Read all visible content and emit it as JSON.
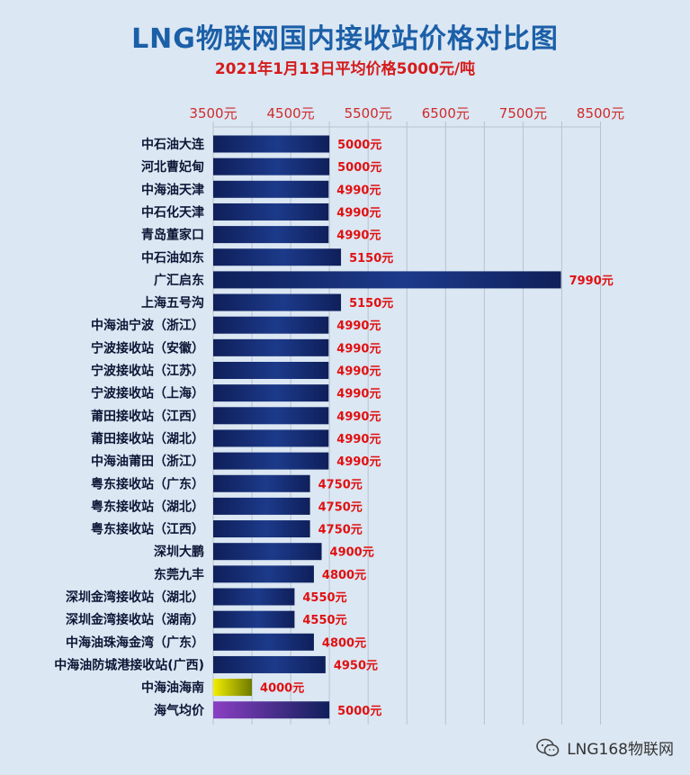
{
  "page": {
    "title": "LNG物联网国内接收站价格对比图",
    "subtitle": "2021年1月13日平均价格5000元/吨"
  },
  "watermark": {
    "text": "LNG168物联网",
    "icon": "wechat-icon"
  },
  "colors": {
    "bar_dark": "#0f1f5a",
    "bar_light": "#2548a6",
    "highlight_bar": [
      "#f2ee00",
      "#7a8a00"
    ],
    "average_bar": [
      "#8b3fc4",
      "#0f1f5a"
    ],
    "value_label": "#e01010",
    "tick_label": "#d02b2b",
    "grid": "#b9c3cf"
  },
  "chart_data": {
    "type": "bar",
    "orientation": "horizontal",
    "title": "LNG物联网国内接收站价格对比图",
    "subtitle": "2021年1月13日平均价格5000元/吨",
    "x_axis": {
      "position": "top",
      "min": 3500,
      "max": 8500,
      "ticks": [
        3500,
        4500,
        5500,
        6500,
        7500,
        8500
      ],
      "tick_labels": [
        "3500元",
        "4500元",
        "5500元",
        "6500元",
        "7500元",
        "8500元"
      ],
      "grid": true
    },
    "categories": [
      "中石油大连",
      "河北曹妃甸",
      "中海油天津",
      "中石化天津",
      "青岛董家口",
      "中石油如东",
      "广汇启东",
      "上海五号沟",
      "中海油宁波（浙江）",
      "宁波接收站（安徽）",
      "宁波接收站（江苏）",
      "宁波接收站（上海）",
      "莆田接收站（江西）",
      "莆田接收站（湖北）",
      "中海油莆田（浙江）",
      "粤东接收站（广东）",
      "粤东接收站（湖北）",
      "粤东接收站（江西）",
      "深圳大鹏",
      "东莞九丰",
      "深圳金湾接收站（湖北）",
      "深圳金湾接收站（湖南）",
      "中海油珠海金湾（广东）",
      "中海油防城港接收站(广西)",
      "中海油海南",
      "海气均价"
    ],
    "values": [
      5000,
      5000,
      4990,
      4990,
      4990,
      5150,
      7990,
      5150,
      4990,
      4990,
      4990,
      4990,
      4990,
      4990,
      4990,
      4750,
      4750,
      4750,
      4900,
      4800,
      4550,
      4550,
      4800,
      4950,
      4000,
      5000
    ],
    "value_labels": [
      "5000元",
      "5000元",
      "4990元",
      "4990元",
      "4990元",
      "5150元",
      "7990元",
      "5150元",
      "4990元",
      "4990元",
      "4990元",
      "4990元",
      "4990元",
      "4990元",
      "4990元",
      "4750元",
      "4750元",
      "4750元",
      "4900元",
      "4800元",
      "4550元",
      "4550元",
      "4800元",
      "4950元",
      "4000元",
      "5000元"
    ],
    "highlight": {
      "中海油海南": "yellow",
      "海气均价": "purple"
    }
  }
}
